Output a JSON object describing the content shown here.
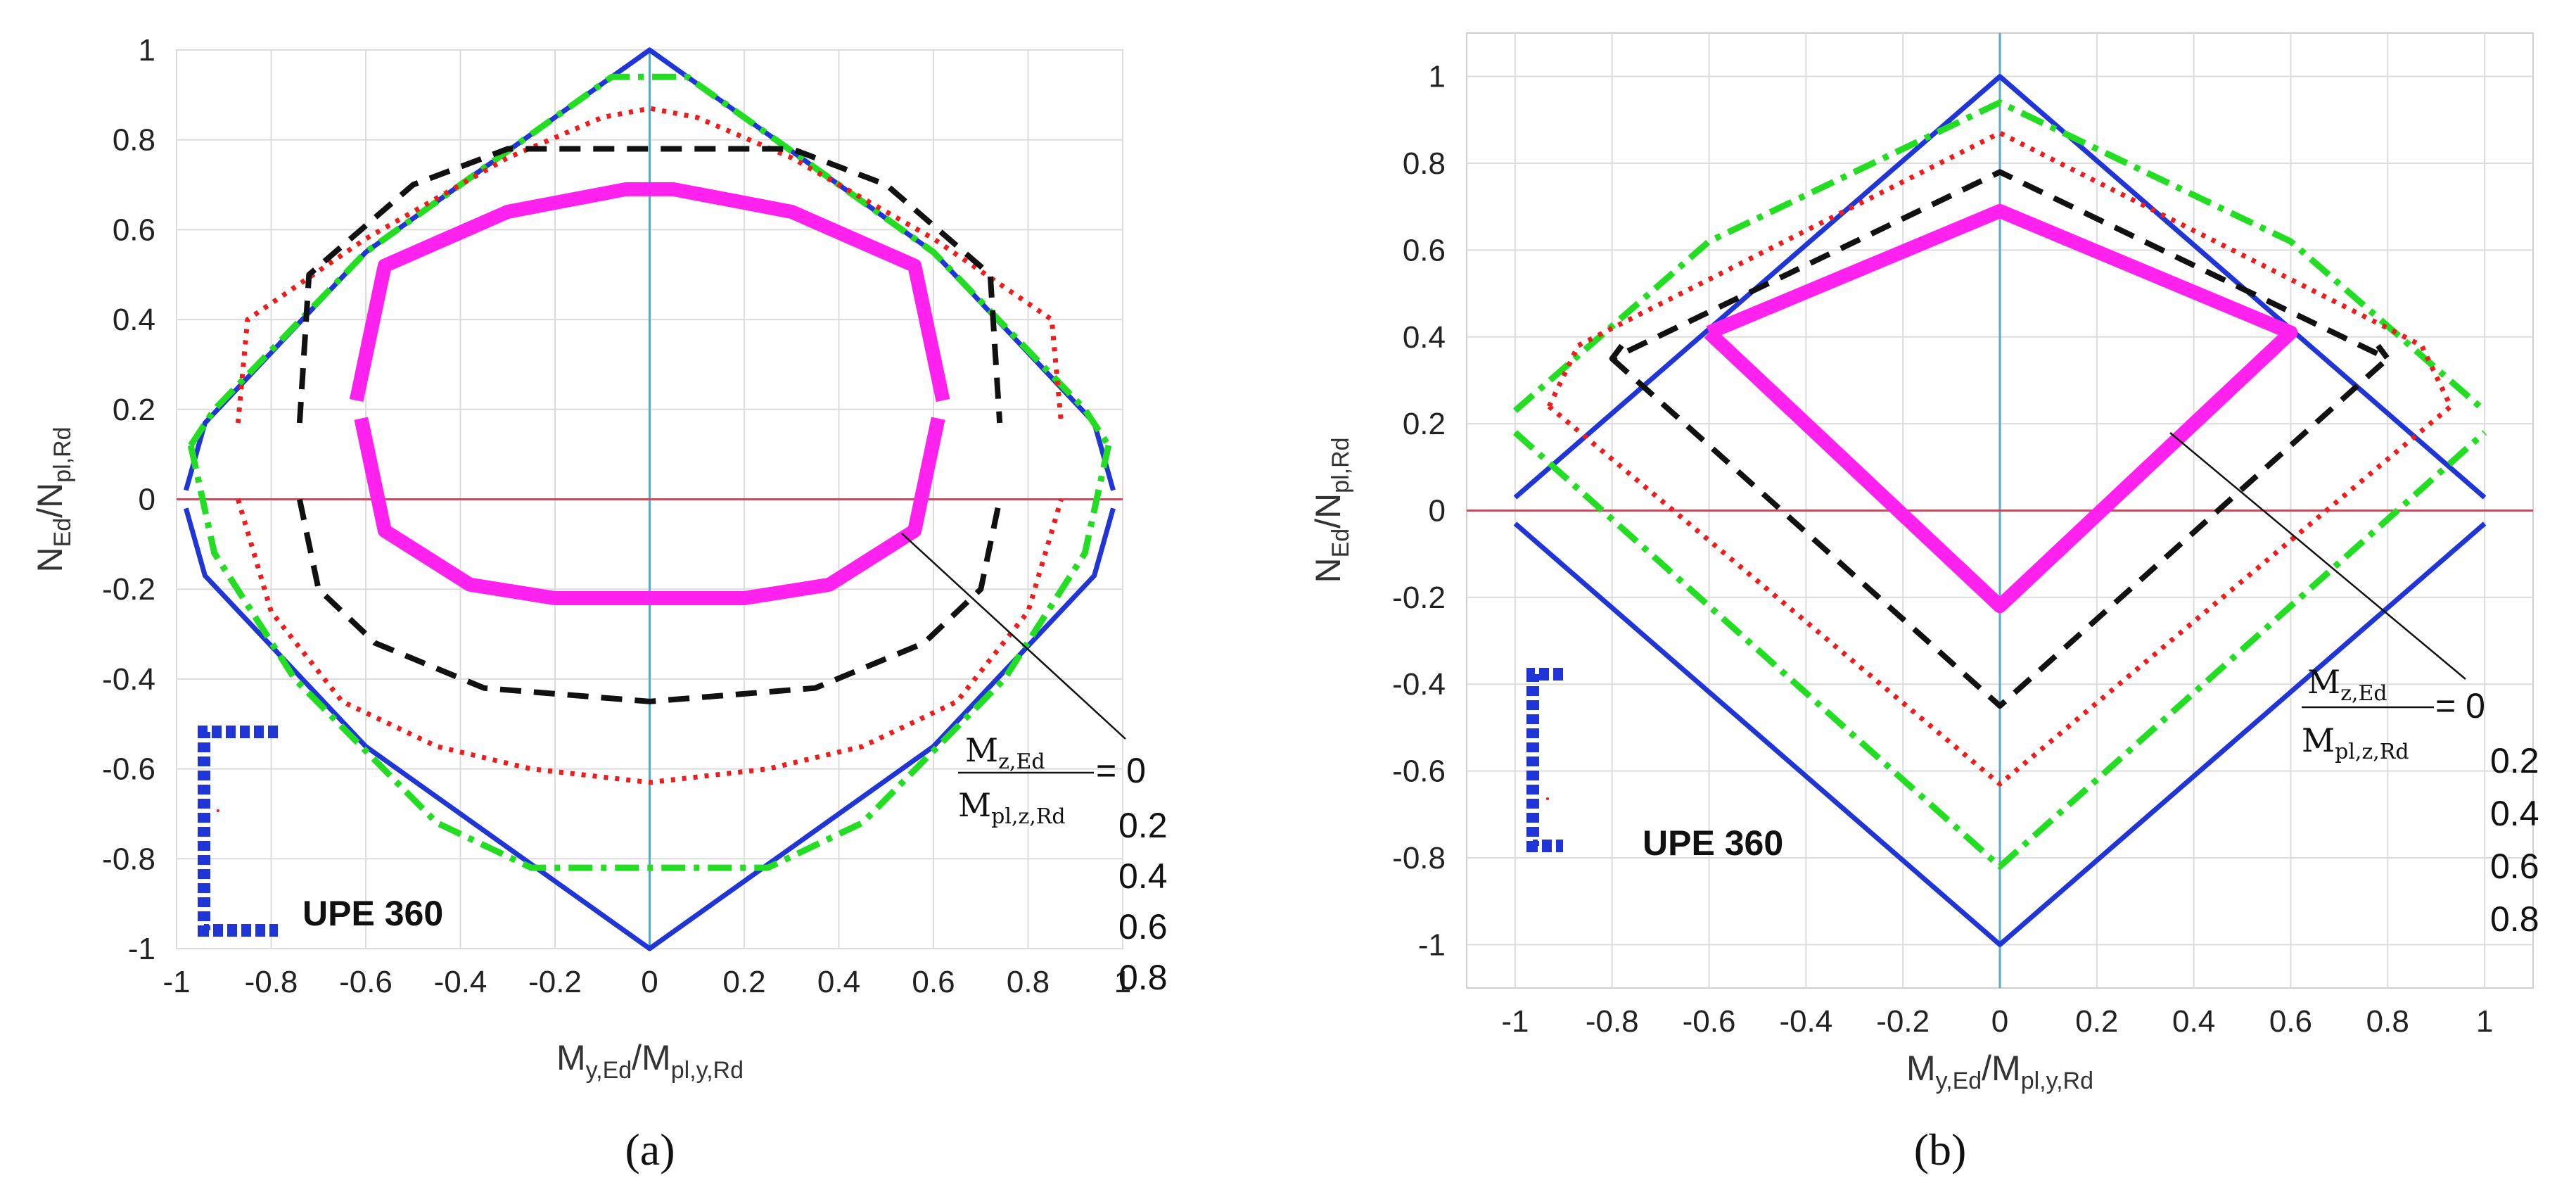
{
  "colors": {
    "mz_0": "#1f35d6",
    "mz_0_2": "#22dd22",
    "mz_0_4": "#ee1c1c",
    "mz_0_6": "#111111",
    "mz_0_8": "#ff22ee",
    "zero_vertical": "#5aa9c8",
    "zero_horizontal": "#c05060",
    "grid": "#dcdcdc",
    "section": "#1f35d6"
  },
  "chart_data": [
    {
      "type": "line",
      "panel_label": "(a)",
      "xlabel": {
        "main": "M",
        "sub1": "y,Ed",
        "mid": "/M",
        "sub2": "pl,y,Rd"
      },
      "ylabel": {
        "main": "N",
        "sub1": "Ed",
        "mid": "/N",
        "sub2": "pl,Rd"
      },
      "xlim": [
        -1,
        1
      ],
      "ylim": [
        -1,
        1
      ],
      "xticks": [
        "-1",
        "-0.8",
        "-0.6",
        "-0.4",
        "-0.2",
        "0",
        "0.2",
        "0.4",
        "0.6",
        "0.8",
        "1"
      ],
      "yticks": [
        "1",
        "0.8",
        "0.6",
        "0.4",
        "0.2",
        "0",
        "-0.2",
        "-0.4",
        "-0.6",
        "-0.8",
        "-1"
      ],
      "section_label": "UPE 360",
      "legend": {
        "numerator": "M",
        "numerator_sub": "z,Ed",
        "denominator": "M",
        "denominator_sub": "pl,z,Rd",
        "values": [
          "= 0",
          "0.2",
          "0.4",
          "0.6",
          "0.8"
        ]
      },
      "series": [
        {
          "name": "Mz/Mpl,z,Rd = 0",
          "style": "solid",
          "points": [
            [
              -0.98,
              0.02
            ],
            [
              -0.94,
              0.17
            ],
            [
              -0.6,
              0.55
            ],
            [
              0,
              1.0
            ],
            [
              0.6,
              0.55
            ],
            [
              0.94,
              0.17
            ],
            [
              0.98,
              0.02
            ],
            null,
            [
              -0.98,
              -0.02
            ],
            [
              -0.94,
              -0.17
            ],
            [
              -0.6,
              -0.55
            ],
            [
              0,
              -1.0
            ],
            [
              0.6,
              -0.55
            ],
            [
              0.94,
              -0.17
            ],
            [
              0.98,
              -0.02
            ]
          ]
        },
        {
          "name": "Mz/Mpl,z,Rd = 0.2",
          "style": "dashdot",
          "points": [
            [
              -0.97,
              0.12
            ],
            [
              -0.92,
              0.2
            ],
            [
              -0.6,
              0.55
            ],
            [
              -0.08,
              0.94
            ],
            [
              0.08,
              0.94
            ],
            [
              0.6,
              0.55
            ],
            [
              0.92,
              0.2
            ],
            [
              0.97,
              0.12
            ],
            null,
            [
              -0.97,
              0.12
            ],
            [
              -0.92,
              -0.12
            ],
            [
              -0.75,
              -0.4
            ],
            [
              -0.45,
              -0.72
            ],
            [
              -0.25,
              -0.82
            ],
            [
              0.25,
              -0.82
            ],
            [
              0.45,
              -0.72
            ],
            [
              0.75,
              -0.4
            ],
            [
              0.92,
              -0.12
            ],
            [
              0.97,
              0.12
            ]
          ]
        },
        {
          "name": "Mz/Mpl,z,Rd = 0.4",
          "style": "dotted",
          "points": [
            [
              -0.87,
              0.17
            ],
            [
              -0.85,
              0.4
            ],
            [
              -0.6,
              0.58
            ],
            [
              -0.3,
              0.76
            ],
            [
              -0.1,
              0.85
            ],
            [
              0,
              0.87
            ],
            [
              0.1,
              0.85
            ],
            [
              0.3,
              0.76
            ],
            [
              0.6,
              0.58
            ],
            [
              0.85,
              0.4
            ],
            [
              0.87,
              0.17
            ],
            null,
            [
              -0.87,
              0
            ],
            [
              -0.8,
              -0.25
            ],
            [
              -0.65,
              -0.45
            ],
            [
              -0.45,
              -0.55
            ],
            [
              -0.25,
              -0.6
            ],
            [
              0,
              -0.63
            ],
            [
              0.25,
              -0.6
            ],
            [
              0.45,
              -0.55
            ],
            [
              0.65,
              -0.45
            ],
            [
              0.8,
              -0.25
            ],
            [
              0.87,
              0
            ]
          ]
        },
        {
          "name": "Mz/Mpl,z,Rd = 0.6",
          "style": "dashed",
          "points": [
            [
              -0.74,
              0.17
            ],
            [
              -0.72,
              0.5
            ],
            [
              -0.5,
              0.7
            ],
            [
              -0.3,
              0.78
            ],
            [
              0,
              0.78
            ],
            [
              0.3,
              0.78
            ],
            [
              0.5,
              0.7
            ],
            [
              0.72,
              0.5
            ],
            [
              0.74,
              0.17
            ],
            null,
            [
              -0.74,
              0
            ],
            [
              -0.7,
              -0.2
            ],
            [
              -0.58,
              -0.32
            ],
            [
              -0.35,
              -0.42
            ],
            [
              0,
              -0.45
            ],
            [
              0.35,
              -0.42
            ],
            [
              0.58,
              -0.32
            ],
            [
              0.7,
              -0.2
            ],
            [
              0.74,
              0
            ]
          ]
        },
        {
          "name": "Mz/Mpl,z,Rd = 0.8",
          "style": "thick",
          "points": [
            [
              -0.62,
              0.22
            ],
            [
              -0.56,
              0.52
            ],
            [
              -0.3,
              0.64
            ],
            [
              -0.05,
              0.69
            ],
            [
              0.05,
              0.69
            ],
            [
              0.3,
              0.64
            ],
            [
              0.56,
              0.52
            ],
            [
              0.62,
              0.22
            ],
            null,
            [
              -0.61,
              0.18
            ],
            [
              -0.56,
              -0.07
            ],
            [
              -0.38,
              -0.19
            ],
            [
              -0.2,
              -0.22
            ],
            [
              0.2,
              -0.22
            ],
            [
              0.38,
              -0.19
            ],
            [
              0.56,
              -0.07
            ],
            [
              0.61,
              0.18
            ]
          ]
        }
      ]
    },
    {
      "type": "line",
      "panel_label": "(b)",
      "xlabel": {
        "main": "M",
        "sub1": "y,Ed",
        "mid": "/M",
        "sub2": "pl,y,Rd"
      },
      "ylabel": {
        "main": "N",
        "sub1": "Ed",
        "mid": "/N",
        "sub2": "pl,Rd"
      },
      "xlim": [
        -1.1,
        1.1
      ],
      "ylim": [
        -1.1,
        1.1
      ],
      "xticks": [
        "-1",
        "-0.8",
        "-0.6",
        "-0.4",
        "-0.2",
        "0",
        "0.2",
        "0.4",
        "0.6",
        "0.8",
        "1"
      ],
      "yticks": [
        "1",
        "0.8",
        "0.6",
        "0.4",
        "0.2",
        "0",
        "-0.2",
        "-0.4",
        "-0.6",
        "-0.8",
        "-1"
      ],
      "section_label": "UPE 360",
      "legend": {
        "numerator": "M",
        "numerator_sub": "z,Ed",
        "denominator": "M",
        "denominator_sub": "pl,z,Rd",
        "values": [
          "= 0",
          "0.2",
          "0.4",
          "0.6",
          "0.8"
        ]
      },
      "series": [
        {
          "name": "Mz/Mpl,z,Rd = 0",
          "style": "solid",
          "points": [
            [
              -1.0,
              0.03
            ],
            [
              0,
              1.0
            ],
            [
              1.0,
              0.03
            ],
            null,
            [
              -1.0,
              -0.03
            ],
            [
              0,
              -1.0
            ],
            [
              1.0,
              -0.03
            ]
          ]
        },
        {
          "name": "Mz/Mpl,z,Rd = 0.2",
          "style": "dashdot",
          "points": [
            [
              -1.0,
              0.23
            ],
            [
              -0.6,
              0.62
            ],
            [
              0,
              0.94
            ],
            [
              0.6,
              0.62
            ],
            [
              1.0,
              0.23
            ],
            null,
            [
              -1.0,
              0.18
            ],
            [
              0,
              -0.82
            ],
            [
              1.0,
              0.18
            ]
          ]
        },
        {
          "name": "Mz/Mpl,z,Rd = 0.4",
          "style": "dotted",
          "points": [
            [
              -0.93,
              0.24
            ],
            [
              -0.87,
              0.38
            ],
            [
              -0.8,
              0.42
            ],
            [
              0,
              0.87
            ],
            [
              0.8,
              0.42
            ],
            [
              0.87,
              0.38
            ],
            [
              0.93,
              0.24
            ],
            [
              0,
              -0.63
            ],
            [
              -0.93,
              0.24
            ]
          ]
        },
        {
          "name": "Mz/Mpl,z,Rd = 0.6",
          "style": "dashed",
          "points": [
            [
              -0.78,
              0.38
            ],
            [
              -0.8,
              0.35
            ],
            [
              0,
              0.78
            ],
            [
              0.8,
              0.35
            ],
            [
              0.78,
              0.38
            ],
            null,
            [
              -0.8,
              0.35
            ],
            [
              0,
              -0.45
            ],
            [
              0.8,
              0.35
            ]
          ]
        },
        {
          "name": "Mz/Mpl,z,Rd = 0.8",
          "style": "thick",
          "points": [
            [
              -0.6,
              0.41
            ],
            [
              0,
              0.69
            ],
            [
              0.6,
              0.41
            ],
            [
              0,
              -0.22
            ],
            [
              -0.6,
              0.41
            ]
          ]
        }
      ]
    }
  ]
}
